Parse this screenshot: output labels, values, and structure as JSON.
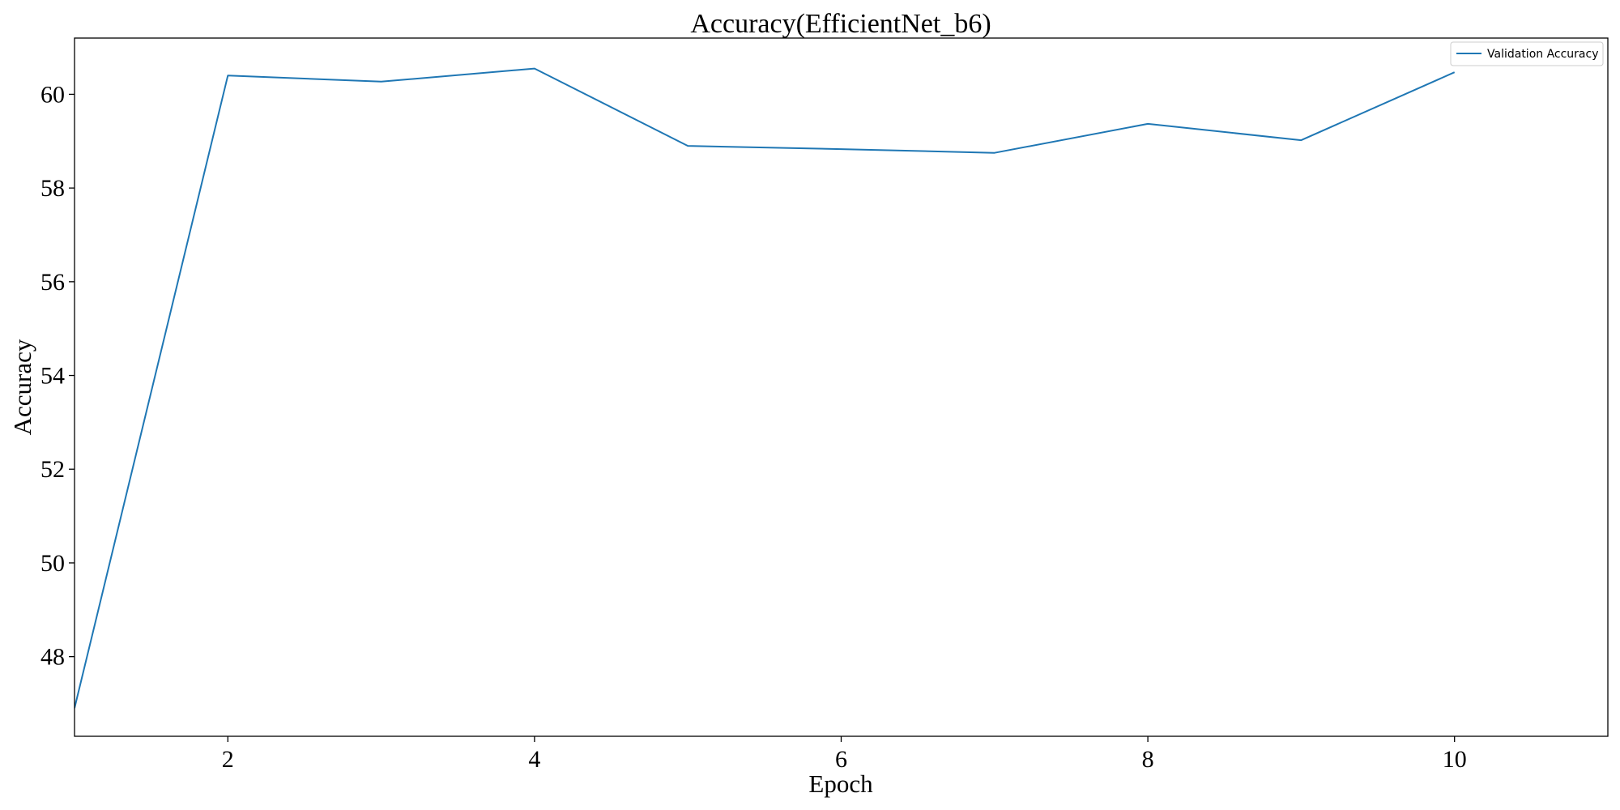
{
  "chart_data": {
    "type": "line",
    "title": "Accuracy(EfficientNet_b6)",
    "xlabel": "Epoch",
    "ylabel": "Accuracy",
    "xlim": [
      1,
      11
    ],
    "ylim": [
      46.3,
      61.2
    ],
    "xticks": [
      2,
      4,
      6,
      8,
      10
    ],
    "yticks": [
      48,
      50,
      52,
      54,
      56,
      58,
      60
    ],
    "grid": false,
    "legend_position": "top-right",
    "series": [
      {
        "name": "Validation Accuracy",
        "color": "#1f77b4",
        "x": [
          1,
          2,
          3,
          4,
          5,
          6,
          7,
          8,
          9,
          10
        ],
        "y": [
          46.9,
          60.4,
          60.27,
          60.55,
          58.9,
          58.83,
          58.75,
          59.37,
          59.02,
          60.47
        ]
      }
    ]
  }
}
